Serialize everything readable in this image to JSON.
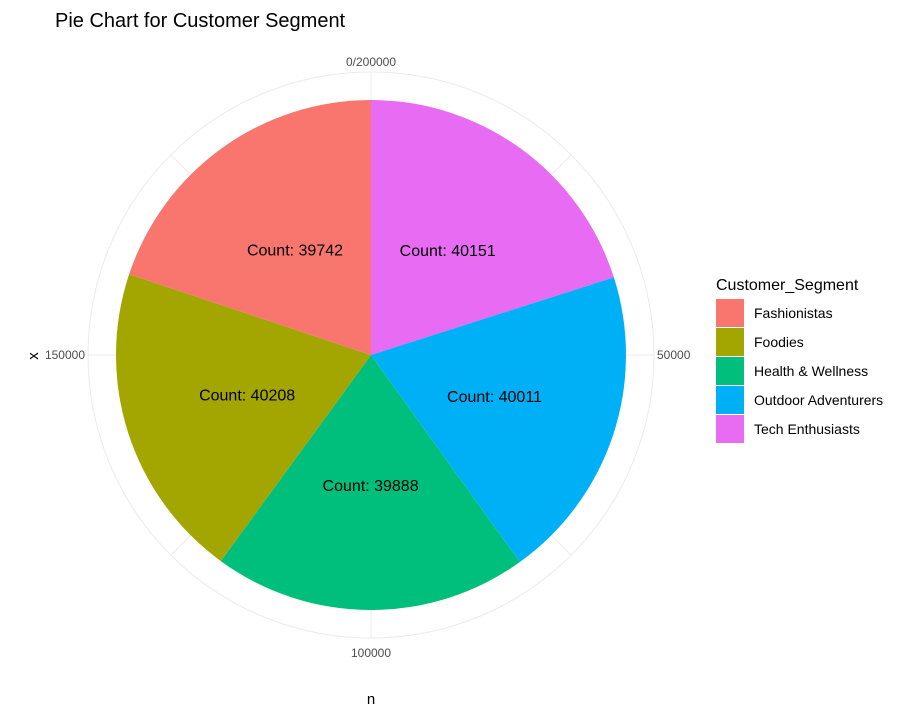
{
  "chart_data": {
    "type": "pie",
    "title": "Pie Chart for Customer Segment",
    "xlabel": "n",
    "ylabel": "x",
    "legend_title": "Customer_Segment",
    "legend_position": "right",
    "grid": true,
    "angle_ticks": [
      {
        "value": 0,
        "label": "0/200000"
      },
      {
        "value": 50000,
        "label": "50000"
      },
      {
        "value": 100000,
        "label": "100000"
      },
      {
        "value": 150000,
        "label": "150000"
      }
    ],
    "angle_total": 200000,
    "slices": [
      {
        "name": "Tech Enthusiasts",
        "value": 40151,
        "label": "Count: 40151",
        "color": "#E76BF3"
      },
      {
        "name": "Outdoor Adventurers",
        "value": 40011,
        "label": "Count: 40011",
        "color": "#00B0F6"
      },
      {
        "name": "Health & Wellness",
        "value": 39888,
        "label": "Count: 39888",
        "color": "#00BF7D"
      },
      {
        "name": "Foodies",
        "value": 40208,
        "label": "Count: 40208",
        "color": "#A3A500"
      },
      {
        "name": "Fashionistas",
        "value": 39742,
        "label": "Count: 39742",
        "color": "#F8766D"
      }
    ],
    "legend": [
      {
        "name": "Fashionistas",
        "color": "#F8766D"
      },
      {
        "name": "Foodies",
        "color": "#A3A500"
      },
      {
        "name": "Health & Wellness",
        "color": "#00BF7D"
      },
      {
        "name": "Outdoor Adventurers",
        "color": "#00B0F6"
      },
      {
        "name": "Tech Enthusiasts",
        "color": "#E76BF3"
      }
    ]
  }
}
